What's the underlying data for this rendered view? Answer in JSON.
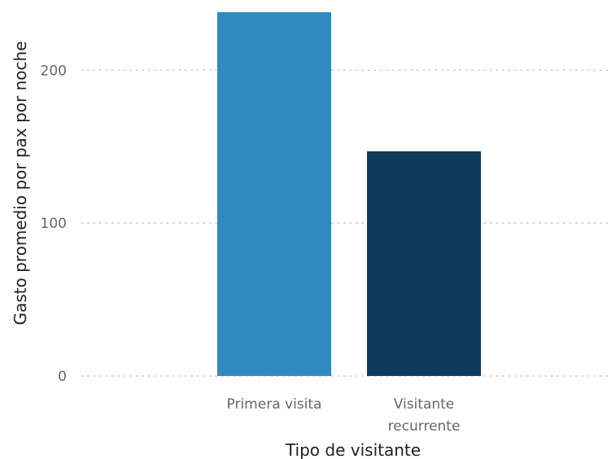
{
  "chart_data": {
    "type": "bar",
    "categories": [
      "Primera visita",
      "Visitante recurrente"
    ],
    "category_label_lines": [
      [
        "Primera visita"
      ],
      [
        "Visitante",
        "recurrente"
      ]
    ],
    "values": [
      238,
      147
    ],
    "xlabel": "Tipo de visitante",
    "ylabel": "Gasto promedio por pax por noche",
    "ylim": [
      0,
      238
    ],
    "yticks": [
      0,
      100,
      200
    ],
    "grid": true,
    "bar_colors": [
      "#3189c0",
      "#0e3a5b"
    ],
    "grid_color": "#c8c8c8"
  }
}
